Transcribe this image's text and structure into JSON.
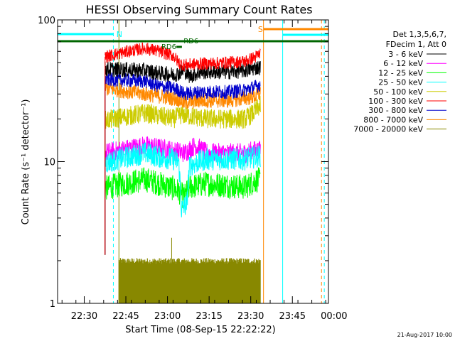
{
  "chart_data": {
    "type": "line",
    "title": "HESSI Observing Summary Count Rates",
    "xlabel": "Start Time (08-Sep-15 22:22:22)",
    "ylabel": "Count Rate (s⁻¹ detector⁻¹)",
    "yscale": "log",
    "ylim": [
      1,
      100
    ],
    "y_ticks": [
      {
        "value": 1,
        "label": "1"
      },
      {
        "value": 10,
        "label": "10"
      },
      {
        "value": 100,
        "label": "100"
      }
    ],
    "xlim_minutes": [
      -1.6,
      96
    ],
    "x_ticks": [
      {
        "m": 8,
        "label": "22:30"
      },
      {
        "m": 23,
        "label": "22:45"
      },
      {
        "m": 38,
        "label": "23:00"
      },
      {
        "m": 53,
        "label": "23:15"
      },
      {
        "m": 68,
        "label": "23:30"
      },
      {
        "m": 83,
        "label": "23:45"
      },
      {
        "m": 98,
        "label": "00:00"
      }
    ],
    "legend": {
      "placement": "right",
      "header": [
        "Det 1,3,5,6,7,",
        "FDecim 1, Att 0"
      ]
    },
    "series": [
      {
        "name": "3 - 6 keV",
        "color": "#000000",
        "start": 15.5,
        "end": 71.5,
        "base": 45,
        "noise": 0.055,
        "keys": [
          [
            15.5,
            45
          ],
          [
            30,
            44
          ],
          [
            35,
            42
          ],
          [
            40,
            41
          ],
          [
            42,
            42
          ],
          [
            44,
            44
          ],
          [
            46,
            40
          ],
          [
            50,
            43
          ],
          [
            60,
            43
          ],
          [
            66,
            44
          ],
          [
            70,
            46
          ],
          [
            71.5,
            46
          ]
        ]
      },
      {
        "name": "6 - 12 keV",
        "color": "#ff00ff",
        "start": 15.5,
        "end": 71.5,
        "base": 11.5,
        "noise": 0.07,
        "keys": [
          [
            15.5,
            11.5
          ],
          [
            30,
            13
          ],
          [
            35,
            12.5
          ],
          [
            40,
            12
          ],
          [
            44,
            11.5
          ],
          [
            48,
            13
          ],
          [
            52,
            11.5
          ],
          [
            66,
            11.5
          ],
          [
            69,
            12
          ],
          [
            71.5,
            12
          ]
        ]
      },
      {
        "name": "12 - 25 keV",
        "color": "#00ff00",
        "start": 15.5,
        "end": 71.5,
        "base": 6.5,
        "noise": 0.09,
        "keys": [
          [
            15.5,
            6.5
          ],
          [
            30,
            7.5
          ],
          [
            35,
            7
          ],
          [
            40,
            6.5
          ],
          [
            42,
            6.2
          ],
          [
            44,
            5.6
          ],
          [
            46,
            6.6
          ],
          [
            52,
            7
          ],
          [
            66,
            6.6
          ],
          [
            70,
            7.4
          ],
          [
            71.5,
            7.4
          ]
        ]
      },
      {
        "name": "25 - 50 keV",
        "color": "#00ffff",
        "start": 15.5,
        "end": 71.5,
        "base": 9.8,
        "noise": 0.08,
        "keys": [
          [
            15.5,
            9.8
          ],
          [
            30,
            11.5
          ],
          [
            35,
            10.8
          ],
          [
            40,
            10.4
          ],
          [
            42,
            10
          ],
          [
            43,
            4.6
          ],
          [
            45,
            5
          ],
          [
            46,
            9.4
          ],
          [
            52,
            10.4
          ],
          [
            66,
            10.4
          ],
          [
            71.5,
            11
          ]
        ]
      },
      {
        "name": "50 - 100 keV",
        "color": "#cccc00",
        "start": 15.5,
        "end": 71.5,
        "base": 19.5,
        "noise": 0.07,
        "keys": [
          [
            15.5,
            19.5
          ],
          [
            30,
            22
          ],
          [
            35,
            21
          ],
          [
            40,
            20
          ],
          [
            43,
            21.5
          ],
          [
            46,
            21
          ],
          [
            52,
            20
          ],
          [
            66,
            20
          ],
          [
            69,
            22
          ],
          [
            71.5,
            25
          ]
        ]
      },
      {
        "name": "100 - 300 keV",
        "color": "#ff0000",
        "start": 15.5,
        "end": 71.5,
        "base": 55,
        "noise": 0.045,
        "keys": [
          [
            15.5,
            55
          ],
          [
            24,
            60
          ],
          [
            30,
            63
          ],
          [
            35,
            60
          ],
          [
            40,
            56
          ],
          [
            42,
            50
          ],
          [
            44,
            48
          ],
          [
            50,
            49
          ],
          [
            60,
            50
          ],
          [
            66,
            51
          ],
          [
            70,
            55
          ],
          [
            71.5,
            58
          ]
        ]
      },
      {
        "name": "300 - 800 keV",
        "color": "#0000cc",
        "start": 15.5,
        "end": 71.5,
        "base": 38,
        "noise": 0.05,
        "keys": [
          [
            15.5,
            38
          ],
          [
            30,
            37
          ],
          [
            35,
            34
          ],
          [
            40,
            33
          ],
          [
            42,
            32
          ],
          [
            44,
            30
          ],
          [
            50,
            31
          ],
          [
            60,
            31
          ],
          [
            66,
            32
          ],
          [
            70,
            34
          ],
          [
            71.5,
            35
          ]
        ]
      },
      {
        "name": "800 - 7000 keV",
        "color": "#ff8800",
        "start": 15.5,
        "end": 71.5,
        "base": 33,
        "noise": 0.055,
        "keys": [
          [
            15.5,
            33
          ],
          [
            30,
            30
          ],
          [
            35,
            29
          ],
          [
            40,
            28
          ],
          [
            42,
            27.5
          ],
          [
            44,
            26
          ],
          [
            50,
            27
          ],
          [
            60,
            27
          ],
          [
            66,
            28
          ],
          [
            70,
            29
          ],
          [
            71.5,
            30
          ]
        ]
      },
      {
        "name": "7000 - 20000 keV",
        "color": "#888800",
        "start": 20.5,
        "end": 71.5,
        "base": 1.9,
        "noise": 0.05,
        "keys": [
          [
            20.5,
            1.9
          ],
          [
            71.5,
            1.9
          ]
        ]
      }
    ],
    "annotations": [
      {
        "text": "N",
        "color": "#00ffff"
      },
      {
        "text": "S",
        "color": "#ff8800"
      },
      {
        "text": "RD6",
        "color": "#006600"
      },
      {
        "text": "RD6",
        "color": "#006600"
      }
    ],
    "timestamp": "21-Aug-2017 10:00"
  }
}
